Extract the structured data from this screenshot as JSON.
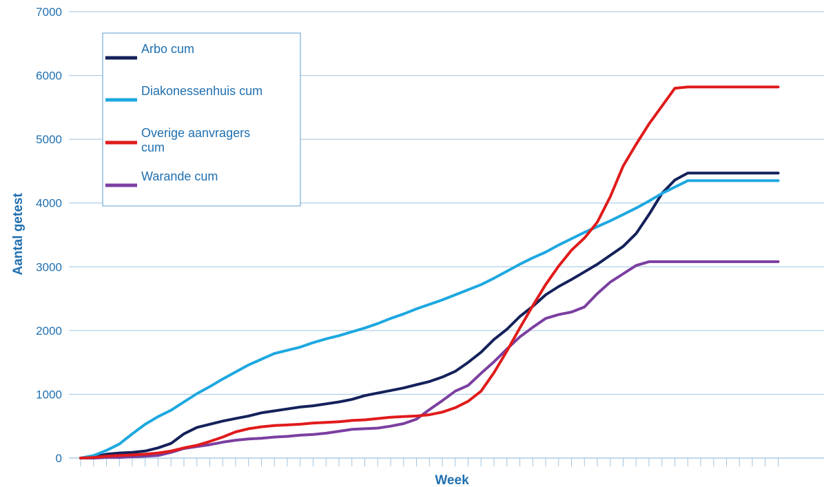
{
  "chart_data": {
    "type": "line",
    "title": "",
    "xlabel": "Week",
    "ylabel": "Aantal getest",
    "ylim": [
      0,
      7000
    ],
    "yticks": [
      0,
      1000,
      2000,
      3000,
      4000,
      5000,
      6000,
      7000
    ],
    "grid": "horizontal",
    "legend_position": "top-left",
    "x": [
      1,
      2,
      3,
      4,
      5,
      6,
      7,
      8,
      9,
      10,
      11,
      12,
      13,
      14,
      15,
      16,
      17,
      18,
      19,
      20,
      21,
      22,
      23,
      24,
      25,
      26,
      27,
      28,
      29,
      30,
      31,
      32,
      33,
      34,
      35,
      36,
      37,
      38,
      39,
      40,
      41,
      42,
      43,
      44,
      45,
      46,
      47,
      48,
      49,
      50,
      51,
      52,
      53,
      54,
      55
    ],
    "series": [
      {
        "name": "Arbo cum",
        "color": "#14215a",
        "values": [
          0,
          20,
          60,
          80,
          90,
          110,
          160,
          230,
          380,
          480,
          530,
          580,
          620,
          660,
          710,
          740,
          770,
          800,
          820,
          850,
          880,
          920,
          980,
          1020,
          1060,
          1100,
          1150,
          1200,
          1270,
          1360,
          1500,
          1660,
          1860,
          2020,
          2220,
          2380,
          2560,
          2690,
          2800,
          2920,
          3040,
          3180,
          3320,
          3520,
          3820,
          4150,
          4360,
          4470,
          4470,
          4470,
          4470,
          4470,
          4470,
          4470,
          4470
        ]
      },
      {
        "name": "Diakonessenhuis cum",
        "color": "#1ea8e0",
        "values": [
          0,
          40,
          120,
          220,
          380,
          530,
          650,
          750,
          880,
          1010,
          1120,
          1240,
          1350,
          1460,
          1550,
          1640,
          1690,
          1740,
          1810,
          1870,
          1920,
          1980,
          2040,
          2110,
          2190,
          2260,
          2340,
          2410,
          2480,
          2560,
          2640,
          2720,
          2820,
          2930,
          3040,
          3140,
          3230,
          3340,
          3440,
          3540,
          3630,
          3720,
          3820,
          3920,
          4030,
          4150,
          4250,
          4350,
          4350,
          4350,
          4350,
          4350,
          4350,
          4350,
          4350
        ]
      },
      {
        "name": "Overige aanvragers cum",
        "color": "#e01b1b",
        "values": [
          0,
          10,
          30,
          40,
          50,
          60,
          80,
          110,
          160,
          200,
          260,
          330,
          410,
          460,
          490,
          510,
          520,
          530,
          550,
          560,
          570,
          590,
          600,
          620,
          640,
          650,
          660,
          680,
          720,
          790,
          890,
          1050,
          1340,
          1680,
          2040,
          2390,
          2720,
          3010,
          3260,
          3450,
          3700,
          4100,
          4580,
          4920,
          5240,
          5520,
          5800,
          5820,
          5820,
          5820,
          5820,
          5820,
          5820,
          5820,
          5820
        ]
      },
      {
        "name": "Warande cum",
        "color": "#7b3fa0",
        "values": [
          0,
          0,
          10,
          10,
          20,
          30,
          40,
          90,
          150,
          180,
          210,
          250,
          280,
          300,
          310,
          330,
          340,
          360,
          370,
          390,
          420,
          450,
          460,
          470,
          500,
          540,
          610,
          760,
          900,
          1050,
          1140,
          1330,
          1510,
          1710,
          1900,
          2050,
          2190,
          2250,
          2290,
          2370,
          2580,
          2760,
          2890,
          3020,
          3080,
          3080,
          3080,
          3080,
          3080,
          3080,
          3080,
          3080,
          3080,
          3080,
          3080
        ]
      }
    ]
  }
}
